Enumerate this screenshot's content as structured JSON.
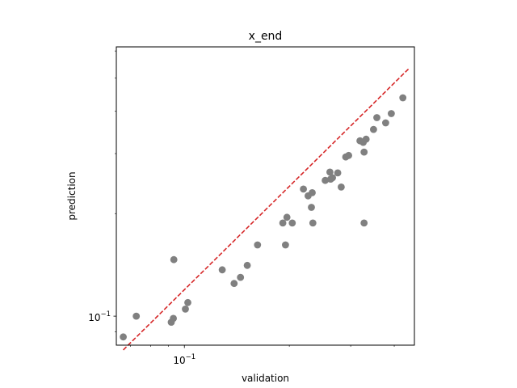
{
  "chart_data": {
    "type": "scatter",
    "title": "x_end",
    "xlabel": "validation",
    "ylabel": "prediction",
    "xscale": "log",
    "yscale": "log",
    "xlim": [
      0.0638,
      0.457
    ],
    "ylim": [
      0.0822,
      0.617
    ],
    "x_tick_labels": [
      {
        "value": 0.1,
        "label": "10^-1"
      }
    ],
    "y_tick_labels": [
      {
        "value": 0.1,
        "label": "10^-1"
      }
    ],
    "x_minor_ticks": [
      0.07,
      0.08,
      0.09,
      0.2,
      0.3,
      0.4
    ],
    "y_minor_ticks": [
      0.09,
      0.2,
      0.3,
      0.4,
      0.5,
      0.6
    ],
    "grid": false,
    "marker_color": "#808080",
    "reference_line": {
      "style": "dashed",
      "color": "#d62728",
      "x": [
        0.0668,
        0.44
      ],
      "y": [
        0.0796,
        0.532
      ]
    },
    "points": [
      {
        "x": 0.0668,
        "y": 0.0869
      },
      {
        "x": 0.0728,
        "y": 0.1
      },
      {
        "x": 0.0917,
        "y": 0.096
      },
      {
        "x": 0.093,
        "y": 0.0985
      },
      {
        "x": 0.0933,
        "y": 0.1465
      },
      {
        "x": 0.1007,
        "y": 0.1049
      },
      {
        "x": 0.1023,
        "y": 0.1096
      },
      {
        "x": 0.1284,
        "y": 0.1368
      },
      {
        "x": 0.1389,
        "y": 0.1247
      },
      {
        "x": 0.1449,
        "y": 0.13
      },
      {
        "x": 0.1515,
        "y": 0.1409
      },
      {
        "x": 0.1621,
        "y": 0.1618
      },
      {
        "x": 0.1916,
        "y": 0.1876
      },
      {
        "x": 0.195,
        "y": 0.1618
      },
      {
        "x": 0.1969,
        "y": 0.1951
      },
      {
        "x": 0.204,
        "y": 0.1876
      },
      {
        "x": 0.2195,
        "y": 0.236
      },
      {
        "x": 0.2264,
        "y": 0.2255
      },
      {
        "x": 0.2314,
        "y": 0.2086
      },
      {
        "x": 0.2337,
        "y": 0.1876
      },
      {
        "x": 0.2327,
        "y": 0.2303
      },
      {
        "x": 0.2535,
        "y": 0.2502
      },
      {
        "x": 0.2616,
        "y": 0.2648
      },
      {
        "x": 0.2628,
        "y": 0.2524
      },
      {
        "x": 0.266,
        "y": 0.2548
      },
      {
        "x": 0.2754,
        "y": 0.2633
      },
      {
        "x": 0.2818,
        "y": 0.2393
      },
      {
        "x": 0.2904,
        "y": 0.2932
      },
      {
        "x": 0.296,
        "y": 0.2963
      },
      {
        "x": 0.3189,
        "y": 0.3271
      },
      {
        "x": 0.3277,
        "y": 0.1876
      },
      {
        "x": 0.3258,
        "y": 0.3237
      },
      {
        "x": 0.3322,
        "y": 0.3306
      },
      {
        "x": 0.3277,
        "y": 0.3032
      },
      {
        "x": 0.3489,
        "y": 0.3532
      },
      {
        "x": 0.3565,
        "y": 0.3826
      },
      {
        "x": 0.3779,
        "y": 0.3692
      },
      {
        "x": 0.3923,
        "y": 0.3931
      },
      {
        "x": 0.4235,
        "y": 0.4373
      }
    ]
  }
}
